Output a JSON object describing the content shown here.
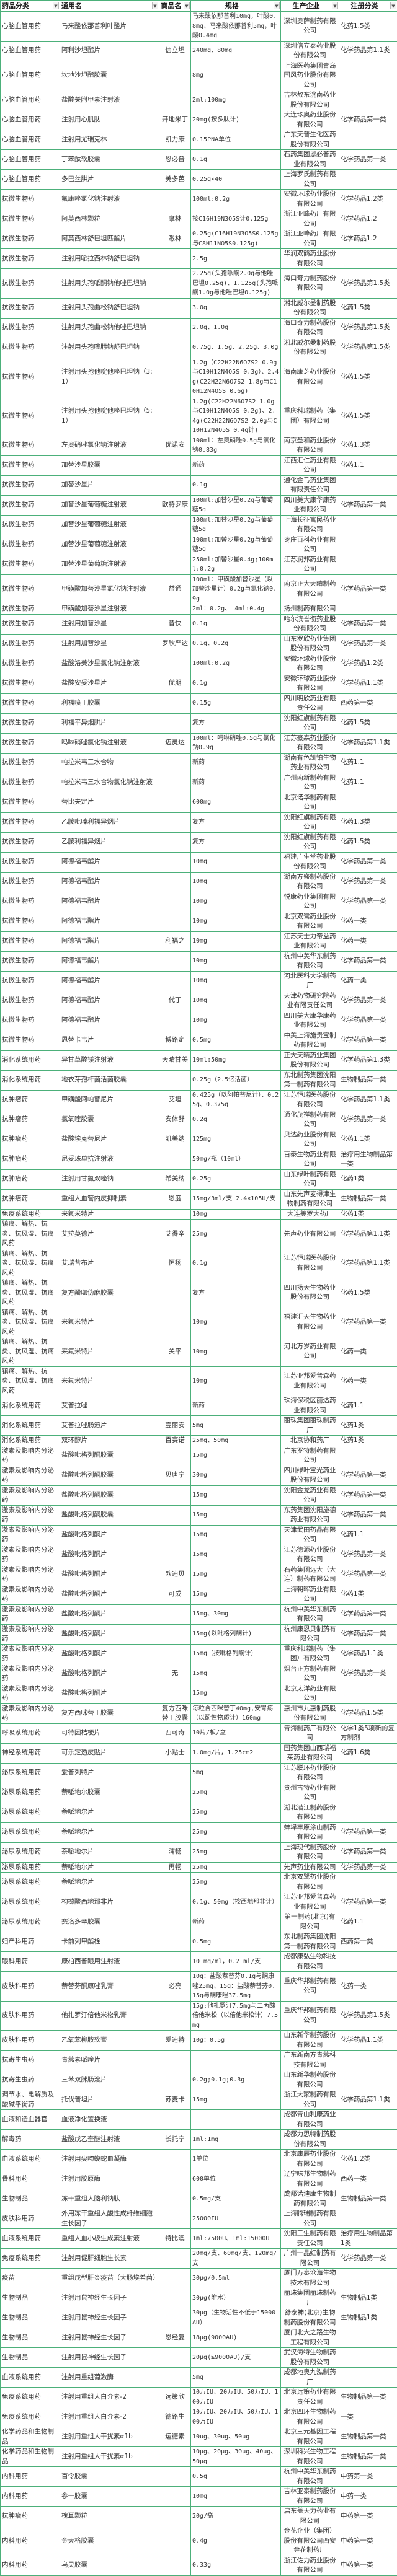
{
  "colors": {
    "grid": "#4cb07a"
  },
  "header": [
    {
      "label": "药品分类",
      "icon": "dropdown-arrow-icon"
    },
    {
      "label": "通用名",
      "icon": "dropdown-arrow-icon"
    },
    {
      "label": "商品名",
      "icon": "dropdown-arrow-icon"
    },
    {
      "label": "规格",
      "icon": "dropdown-arrow-icon"
    },
    {
      "label": "生产企业",
      "icon": "dropdown-arrow-icon"
    },
    {
      "label": "注册分类",
      "icon": "dropdown-arrow-icon"
    }
  ],
  "rows": [
    [
      "心脑血管用药",
      "马来酸依那普利叶酸片",
      "",
      "马来酸依那普利10mg，叶酸0.8mg、马来酸依那普利5mg，叶酸0.4mg",
      "深圳奥萨制药有限公司",
      "化药1.5类"
    ],
    [
      "心脑血管用药",
      "阿利沙坦酯片",
      "信立坦",
      "240mg、80mg",
      "深圳信立泰药业股份有限公司",
      "化学药品第1.1类"
    ],
    [
      "心脑血管用药",
      "坎地沙坦酯胶囊",
      "",
      "8mg",
      "上海医药集团青岛国风药业股份有限公司",
      ""
    ],
    [
      "心脑血管用药",
      "盐酸关附甲素注射液",
      "",
      "2ml:100mg",
      "吉林敖东洮南药业股份有限公司",
      ""
    ],
    [
      "心脑血管用药",
      "注射用心肌肽",
      "开地米丁",
      "20mg(按多肽计)",
      "大连珍奥药业股份有限公司",
      "化学药品第一类"
    ],
    [
      "心脑血管用药",
      "注射用尤瑞克林",
      "凯力康",
      "0.15PNA单位",
      "广东天普生化医药股份有限公司",
      ""
    ],
    [
      "心脑血管用药",
      "丁苯酞软胶囊",
      "恩必普",
      "0.1g",
      "石药集团恩必普药业有限公司",
      "化学药品第一类"
    ],
    [
      "心脑血管用药",
      "多巴丝肼片",
      "美多芭",
      "0.25g×40",
      "上海罗氏制药有限公司",
      ""
    ],
    [
      "抗微生物药",
      "氟康唑氯化钠注射液",
      "",
      "100ml:0.2g",
      "安徽环球药业股份有限公司",
      "化学药品1.2类"
    ],
    [
      "抗微生物药",
      "阿莫西林颗粒",
      "摩林",
      "按C16H19N3O5S计0.125g",
      "浙江亚峰药厂有限公司",
      "化学药品1.2"
    ],
    [
      "抗微生物药",
      "阿莫西林舒巴坦匹酯片",
      "悉林",
      "0.25g(C16H19N3O5S0.125g与C8H11NO5S0.125g)",
      "浙江亚峰药厂有限公司",
      "化学药品1.2"
    ],
    [
      "抗微生物药",
      "注射用哌拉西林钠舒巴坦钠",
      "",
      "2.5g",
      "华润双鹤药业股份有限公司",
      ""
    ],
    [
      "抗微生物药",
      "注射用头孢哌酮钠他唑巴坦钠",
      "",
      "2.25g(头孢哌酮2.0g与他唑巴坦0.25g)、1.125g(头孢哌酮1.0g与他唑巴坦0.125g)",
      "海口奇力制药股份有限公司",
      "化学药品第1.5类"
    ],
    [
      "抗微生物药",
      "注射用头孢曲松钠舒巴坦钠",
      "",
      "3.0g",
      "湘北威尔曼制药股份有限公司",
      "化药1.5类"
    ],
    [
      "抗微生物药",
      "注射用头孢曲松钠他唑巴坦钠",
      "",
      "2.0g、1.0g",
      "海口奇力制药股份有限公司",
      "化学药品第1.5类"
    ],
    [
      "抗微生物药",
      "注射用头孢噻肟钠舒巴坦钠",
      "",
      "0.75g、1.5g、2.25g、3.0g",
      "湘北威尔曼制药股份有限公司",
      "化学药品第1.5类"
    ],
    [
      "抗微生物药",
      "注射用头孢他啶他唑巴坦钠（3:1）",
      "",
      "1.2g（C22H22N6O7S2 0.9g与C10H12N4O5S 0.3g）、2.4g(C22H22N6O7S2 1.8g与C10H12N4O5S 0.6g)",
      "海南康芝药业股份有限公司",
      "化药1.5类"
    ],
    [
      "抗微生物药",
      "注射用头孢他啶他唑巴坦钠（5:1）",
      "",
      "1.2g(C22H22N6O7S2 1.0g与C10H12N4O5S 0.2g)、2.4g(C22H22N6O7S2 2.0g与C10H12N4O5S 0.4g计)",
      "重庆科瑞制药（集团）有限公司",
      "化药1.5类"
    ],
    [
      "抗微生物药",
      "左奥硝唑氯化钠注射液",
      "优诺安",
      "100ml：左奥硝唑0.5g与氯化钠0.83g",
      "南京圣和药业股份有限公司",
      "化药1.3类"
    ],
    [
      "抗微生物药",
      "加替沙星胶囊",
      "",
      "新药",
      "江西汇仁药业有限公司",
      "化药1.1"
    ],
    [
      "抗微生物药",
      "加替沙星片",
      "",
      "0.1g",
      "通化金马药业集团有限责任公司",
      ""
    ],
    [
      "抗微生物药",
      "加替沙星葡萄糖注射液",
      "欧特罗康",
      "100ml:加替沙星0.2g与葡萄糖5g",
      "四川美大康华康药业有限公司",
      "化学药品第一类"
    ],
    [
      "抗微生物药",
      "加替沙星葡萄糖注射液",
      "",
      "100ml:加替沙星0.2g与葡萄糖5g",
      "上海长征富民药业有限公司",
      ""
    ],
    [
      "抗微生物药",
      "加替沙星葡萄糖注射液",
      "",
      "100ml:加替沙星0.2g与葡萄糖5g",
      "枣庄百科药业有限公司",
      ""
    ],
    [
      "抗微生物药",
      "加替沙星葡萄糖注射液",
      "",
      "250ml:加替沙星0.4g;100ml:0.2g",
      "江苏润邦药业有限公司",
      ""
    ],
    [
      "抗微生物药",
      "甲磺酸加替沙星氯化钠注射液",
      "益通",
      "100ml：甲磺酸加替沙星（以加替沙星计）0.2g与氯化钠0.9g",
      "南京正大天晴制药有限公司",
      "化学药品第一类"
    ],
    [
      "抗微生物药",
      "甲磺酸加替沙星注射液",
      "",
      "2ml：0.2g、 4ml:0.4g",
      "扬州制药有限公司",
      ""
    ],
    [
      "抗微生物药",
      "注射用加替沙星",
      "昔快",
      "0.1g",
      "哈尔滨誉衡药业股份有限公司",
      "化学药品第一类"
    ],
    [
      "抗微生物药",
      "注射用加替沙星",
      "罗欣严达",
      "0.1g、0.2g",
      "山东罗欣药业集团股份有限公司",
      "化学药品第一类"
    ],
    [
      "抗微生物药",
      "盐酸洛美沙星氯化钠注射液",
      "",
      "100ml:0.2g",
      "安徽环球药业股份有限公司",
      "化学药品1.2类"
    ],
    [
      "抗微生物药",
      "盐酸安妥沙星片",
      "优朋",
      "0.1g",
      "安徽环球药业股份有限公司",
      "化学药品1.1类"
    ],
    [
      "抗微生物药",
      "利福喷丁胶囊",
      "",
      "0.15g",
      "四川明欣药业有限责任公司",
      "西药第一类"
    ],
    [
      "抗微生物药",
      "利福平异烟肼片",
      "",
      "复方",
      "沈阳红旗制药有限公司",
      "化药1.5类"
    ],
    [
      "抗微生物药",
      "吗啉硝唑氯化钠注射液",
      "迈灵达",
      "100ml：吗啉硝唑0.5g与氯化钠0.9g",
      "江苏豪森药业股份有限公司",
      "化学药品第1.1类"
    ],
    [
      "抗微生物药",
      "帕拉米韦三水合物",
      "",
      "新药",
      "湖南有色凯铂生物药业有限公司",
      "化药1.1"
    ],
    [
      "抗微生物药",
      "帕拉米韦三水合物氯化钠注射液",
      "",
      "新药",
      "广州南新制药有限公司",
      "化药1.1"
    ],
    [
      "抗微生物药",
      "替比夫定片",
      "",
      "600mg",
      "北京诺华制药有限公司",
      ""
    ],
    [
      "抗微生物药",
      "乙胺吡嗪利福异烟片",
      "",
      "复方",
      "沈阳红旗制药有限公司",
      "化药1.3类"
    ],
    [
      "抗微生物药",
      "乙胺利福异烟片",
      "",
      "复方",
      "沈阳红旗制药有限公司",
      "化药1.5类"
    ],
    [
      "抗微生物药",
      "阿德福韦酯片",
      "",
      "10mg",
      "福建广生堂药业股份有限公司",
      "化学药品第一类"
    ],
    [
      "抗微生物药",
      "阿德福韦酯片",
      "",
      "10mg",
      "湖南方盛制药股份有限公司",
      "化学药品第一类"
    ],
    [
      "抗微生物药",
      "阿德福韦酯片",
      "",
      "10mg",
      "悦康药业集团有限公司",
      "化学药品第一类"
    ],
    [
      "抗微生物药",
      "阿德福韦酯片",
      "",
      "10mg",
      "北京双鹭药业股份有限公司",
      "化药一类"
    ],
    [
      "抗微生物药",
      "阿德福韦酯片",
      "利福之",
      "10mg",
      "江苏天士力帝益药业有限公司",
      "化药一类"
    ],
    [
      "抗微生物药",
      "阿德福韦酯片",
      "",
      "10mg",
      "杭州中美华东制药有限公司",
      "化学药品第一类"
    ],
    [
      "抗微生物药",
      "阿德福韦酯片",
      "",
      "10mg",
      "河北医科大学制药厂",
      "化药一类"
    ],
    [
      "抗微生物药",
      "阿德福韦酯片",
      "代丁",
      "10mg",
      "天津药物研究院药业有限责任公司",
      "化学药品第一类"
    ],
    [
      "抗微生物药",
      "阿德福韦酯片",
      "",
      "10mg",
      "四川美大康华康药业有限公司",
      "化学药品第一类"
    ],
    [
      "抗微生物药",
      "恩替卡韦片",
      "博路定",
      "0.5mg",
      "中美上海施贵宝制药有限公司",
      "化学药品第一类"
    ],
    [
      "消化系统用药",
      "异甘草酸镁注射液",
      "天晴甘美",
      "10ml:50mg",
      "正大天晴药业集团股份有限公司",
      "化学药品第1.3类"
    ],
    [
      "消化系统用药",
      "地衣芽孢杆菌活菌胶囊",
      "",
      "0.25g（2.5亿活菌）",
      "东北制药集团沈阳第一制药有限公司",
      "生物制品第一类"
    ],
    [
      "抗肿瘤药",
      "甲磺酸阿帕替尼片",
      "艾坦",
      "0.425g（以阿帕替尼计）、0.25g、0.375g",
      "江苏恒瑞医药股份有限公司",
      "化学药品第1.1类"
    ],
    [
      "抗肿瘤药",
      "氯氧喹胶囊",
      "安体舒",
      "0.2g",
      "通化茂祥制药有限公司",
      "化学药品第一类"
    ],
    [
      "抗肿瘤药",
      "盐酸埃克替尼片",
      "凯美纳",
      "125mg",
      "贝达药业股份有限公司",
      "化药1.1类"
    ],
    [
      "抗肿瘤药",
      "尼妥珠单抗注射液",
      "",
      "50mg/瓶（10ml）",
      "百泰生物药业有限公司",
      "治疗用生物制品第一类"
    ],
    [
      "抗肿瘤药",
      "注射用甘氨双唑钠",
      "希美纳",
      "0.25g",
      "山东绿叶制药有限公司",
      "化药1类"
    ],
    [
      "抗肿瘤药",
      "重组人血管内皮抑制素",
      "恩度",
      "15mg/3ml/支 2.4×105U/支",
      "山东先声麦得津生物制药有限公司",
      "生物制品第一类"
    ],
    [
      "免疫系统用药",
      "来氟米特片",
      "",
      "10mg",
      "大连美罗大药厂",
      "化药1类"
    ],
    [
      "镇痛、解热、抗炎、抗风湿、抗痛风药",
      "艾拉莫德片",
      "艾得辛",
      "25mg",
      "先声药业有限公司",
      "化学药品第1.1类"
    ],
    [
      "镇痛、解热、抗炎、抗风湿、抗痛风药",
      "艾瑞昔布片",
      "恒扬",
      "0.1g",
      "江苏恒瑞医药股份有限公司",
      "化学药品第1.1类"
    ],
    [
      "镇痛、解热、抗炎、抗风湿、抗痛风药",
      "复方酚咖伪麻胶囊",
      "",
      "复方",
      "四川扬天生物药业股份有限公司",
      "化药1.5类"
    ],
    [
      "镇痛、解热、抗炎、抗风湿、抗痛风药",
      "来氟米特片",
      "",
      "10mg",
      "福建汇天生物药业有限公司",
      "化学药品第一类"
    ],
    [
      "镇痛、解热、抗炎、抗风湿、抗痛风药",
      "来氟米特片",
      "关平",
      "10mg",
      "河北万岁药业有限公司",
      "化药一类"
    ],
    [
      "镇痛、解热、抗炎、抗风湿、抗痛风药",
      "来氟米特片",
      "",
      "10mg",
      "江苏亚邦爱普森药业有限公司",
      "化药一类"
    ],
    [
      "消化系统用药",
      "艾普拉唑",
      "",
      "新药",
      "珠海保税区丽达药业有限公司",
      "化药1.1"
    ],
    [
      "消化系统用药",
      "艾普拉唑肠溶片",
      "壹丽安",
      "5mg",
      "丽珠集团丽珠制药厂",
      "化药1类"
    ],
    [
      "消化系统用药",
      "双环醇片",
      "百赛诺",
      "25mg、50mg",
      "北京协和药厂",
      "化药1类"
    ],
    [
      "激素及影响内分泌药",
      "盐酸吡格列酮胶囊",
      "",
      "15mg",
      "广东罗特制药有限公司",
      ""
    ],
    [
      "激素及影响内分泌药",
      "盐酸吡格列酮胶囊",
      "贝唐宁",
      "30mg",
      "四川绿叶宝光药业股份有限公司",
      "化学药品第一类"
    ],
    [
      "激素及影响内分泌药",
      "盐酸吡格列酮胶囊",
      "",
      "15mg",
      "沈阳金龙药业有限公司",
      "化学药品第一类"
    ],
    [
      "激素及影响内分泌药",
      "盐酸吡格列酮胶囊",
      "",
      "15mg",
      "东药集团沈阳施德药业有限公司",
      "化学药品第一类"
    ],
    [
      "激素及影响内分泌药",
      "盐酸吡格列酮片",
      "",
      "15mg",
      "天津武田药品有限公司",
      "化药1.1"
    ],
    [
      "激素及影响内分泌药",
      "盐酸吡格列酮片",
      "",
      "15mg",
      "江苏德源药业股份有限公司",
      "化学药品第一类"
    ],
    [
      "激素及影响内分泌药",
      "盐酸吡格列酮片",
      "欧迪贝",
      "15mg",
      "石药集团远大（大连）制药有限公司",
      "化学药品第一类"
    ],
    [
      "激素及影响内分泌药",
      "盐酸吡格列酮片",
      "可成",
      "15mg",
      "上海朝晖药业有限公司",
      "化药1类"
    ],
    [
      "激素及影响内分泌药",
      "盐酸吡格列酮片",
      "",
      "15mg、30mg",
      "杭州中美华东制药有限公司",
      "化学药品第一类"
    ],
    [
      "激素及影响内分泌药",
      "盐酸吡格列酮片",
      "",
      "15mg(以吡格列酮计)",
      "杭州康恩贝制药有限公司",
      "化学药品第一类"
    ],
    [
      "激素及影响内分泌药",
      "盐酸吡格列酮片",
      "",
      "15mg（按吡格列酮计）",
      "重庆科瑞制药（集团）有限公司",
      "化学药品1.1类"
    ],
    [
      "激素及影响内分泌药",
      "盐酸吡格列酮片",
      "无",
      "15mg",
      "烟台正方制药有限公司",
      "化学药品第一类"
    ],
    [
      "激素及影响内分泌药",
      "盐酸吡格列酮片",
      "",
      "15mg",
      "北京太洋药业有限公司",
      ""
    ],
    [
      "激素及影响内分泌药",
      "复方西咪替丁胶囊",
      "复方西咪替丁胶囊",
      "每粒含西咪替丁40mg,安胃疡（以酚性物质计）160mg",
      "惠州市九惠制药股份有限公司",
      "化学药品1.5类"
    ],
    [
      "呼吸系统用药",
      "可待因桔梗片",
      "西可奇",
      "10片/板/盒",
      "青海制药厂有限公司",
      "化学1类5项新的复方制剂"
    ],
    [
      "神经系统用药",
      "可乐定透皮贴片",
      "小贴士",
      "1.0mg/片，1.25cm2",
      "国药集团山西瑞福莱药业有限公司",
      "化药1.6类"
    ],
    [
      "泌尿系统用药",
      "爱普列特片",
      "",
      "5mg",
      "江苏联环药业股份有限公司",
      ""
    ],
    [
      "泌尿系统用药",
      "萘哌地尔胶囊",
      "",
      "25mg",
      "贵州古特药业有限公司",
      ""
    ],
    [
      "泌尿系统用药",
      "萘哌地尔片",
      "",
      "25mg",
      "湖北潜江制药股份有限公司",
      ""
    ],
    [
      "泌尿系统用药",
      "萘哌地尔片",
      "",
      "25mg",
      "蚌埠丰原涂山制药有限公司",
      "化学药品第一类"
    ],
    [
      "泌尿系统用药",
      "萘哌地尔片",
      "浦畅",
      "25mg",
      "上海现代制药股份有限公司",
      "化学药品第一类"
    ],
    [
      "泌尿系统用药",
      "萘哌地尔片",
      "再畅",
      "25mg",
      "先声药业有限公司",
      "化学药品第一类"
    ],
    [
      "泌尿系统用药",
      "萘哌地尔片",
      "",
      "25mg",
      "北京双鹭药业股份有限公司",
      ""
    ],
    [
      "泌尿系统用药",
      "枸橼酸西地那非片",
      "",
      "0.1g、50mg（按西地那非计）",
      "江苏亚邦爱普森药业有限公司",
      "化学药品第一类"
    ],
    [
      "泌尿系统用药",
      "赛洛多辛胶囊",
      "",
      "新药",
      "第一制药(北京)有限公司",
      "化药1.1"
    ],
    [
      "妇产科用药",
      "卡前列甲酯栓",
      "",
      "0.5mg",
      "东北制药集团沈阳第一制药有限公司",
      "西药第一类"
    ],
    [
      "眼科用药",
      "康柏西普眼用注射液",
      "",
      "10 mg/ml，0.2 ml/支",
      "成都康弘生物科技有限公司",
      ""
    ],
    [
      "皮肤科用药",
      "萘替芬酮康唑乳膏",
      "必亮",
      "10g：盐酸萘替芬0.1g与酮康唑25mg、15g：盐酸萘替芬0.15g与酮康唑37.5mg",
      "重庆华邦制药有限公司",
      "化药一类"
    ],
    [
      "皮肤科用药",
      "他扎罗汀倍他米松乳膏",
      "",
      "15g:他扎罗汀7.5mg与二丙酸倍他米松（以倍他米松计）7.5mg",
      "重庆华邦制药有限公司",
      "化学药品第1.5类"
    ],
    [
      "皮肤科用药",
      "乙氧苯柳胺软膏",
      "爱迪特",
      "10g：0.5g",
      "山东新华制药股份有限公司",
      "化学药品1.1类"
    ],
    [
      "抗寄生虫药",
      "青蒿素哌喹片",
      "",
      "",
      "广东新南方青蒿科技有限公司",
      ""
    ],
    [
      "抗寄生虫药",
      "三苯双脒肠溶片",
      "",
      "0.2g;0.1g;0.3g",
      "山东新华制药股份有限公司",
      ""
    ],
    [
      "调节水、电解质及酸碱平衡药",
      "托伐普坦片",
      "苏麦卡",
      "15mg",
      "浙江大冢制药有限公司",
      "化学药品第1.1类"
    ],
    [
      "血液和造血器官",
      "血液净化置换液",
      "",
      "",
      "成都青山利康药业有限公司",
      ""
    ],
    [
      "解毒药",
      "盐酸戊乙奎醚注射液",
      "长托宁",
      "1ml:1mg",
      "成都力思特制药股份有限公司",
      ""
    ],
    [
      "血液系统用药",
      "注射用尖吻蝮蛇血凝酶",
      "",
      "1单位",
      "北京康辰药业股份有限公司",
      "化药1.2类"
    ],
    [
      "骨科用药",
      "注射用胶原酶",
      "",
      "600单位",
      "辽宁味邦生物制药有限公司",
      "西药一类"
    ],
    [
      "生物制品",
      "冻干重组人脑利钠肽",
      "",
      "0.5mg/支",
      "成都诺迪康生物制药有限公司",
      "生物制品第一类"
    ],
    [
      "皮肤科用药",
      "外用冻干重组人酸性成纤维细胞生长因子",
      "",
      "25000IU",
      "上海腾瑞制药有限公司",
      ""
    ],
    [
      "血液系统用药",
      "重组人血小板生成素注射液",
      "特比澳",
      "1ml:7500U、1ml:15000U",
      "沈阳三生制药有限责任公司",
      "治疗用生物制品第1类"
    ],
    [
      "免疫系统用药",
      "注射用促肝细胞生长素",
      "",
      "20mg/支、60mg/支、120mg/支",
      "广州一品红制药有限公司",
      "化学药品第一类"
    ],
    [
      "疫苗",
      "重组戊型肝炎疫苗（大肠埃希菌）",
      "",
      "30μg/0.5ml",
      "厦门万泰沧海生物技术有限公司",
      ""
    ],
    [
      "生物制品",
      "注射用鼠神经生长因子",
      "",
      "30μg(附水）",
      "丽珠集团丽珠制药厂",
      "生物制品1类"
    ],
    [
      "生物制品",
      "注射用鼠神经生长因子",
      "",
      "30μg（生物活性不低于15000AU）",
      "舒泰神(北京)生物制药股份有限公司",
      "生物制品1类"
    ],
    [
      "生物制品",
      "注射用鼠神经生长因子",
      "恩经复",
      "18μg(9000AU)",
      "厦门北大之路生物工程有限公司",
      ""
    ],
    [
      "生物制品",
      "注射用鼠神经生长因子",
      "",
      "20μg(≥9000AU)/支",
      "武汉海特生物制药股份有限公司",
      ""
    ],
    [
      "血液系统用药",
      "注射用重组葡激酶",
      "",
      "5mg",
      "成都地奥九泓制药厂",
      ""
    ],
    [
      "免疫系统用药",
      "注射用重组人白介素-2",
      "远策欣",
      "10万IU、20万IU、50万IU、100万IU",
      "北京远策药业有限责任公司",
      "生物制品第一类"
    ],
    [
      "免疫系统用药",
      "注射用重组人白介素-2",
      "德路生",
      "10万IU、20万IU、50万IU、100万IU",
      "北京四环生物制药有限公司",
      "一类"
    ],
    [
      "化学药品和生物制品",
      "注射用重组人干扰素α1b",
      "运德素",
      "10ug、30ug、50ug",
      "北京三元基因工程有限公司",
      "生物制品第一类"
    ],
    [
      "化学药品和生物制品",
      "注射用重组人干扰素α1b",
      "",
      "10μg、20μg、30μg、40μg、50μg",
      "深圳科兴生物工程有限公司",
      "生物制品第一类"
    ],
    [
      "内科用药",
      "百令胶囊",
      "",
      "0.5g",
      "杭州中美华东制药有限公司",
      "中药第一类"
    ],
    [
      "内科用药",
      "参一胶囊",
      "",
      "10mg",
      "吉林亚泰制药股份有限公司",
      "中药一类"
    ],
    [
      "抗肿瘤药",
      "槐耳颗粒",
      "",
      "20g/袋",
      "启东盖天力药业有限公司",
      "中药第一类"
    ],
    [
      "内科用药",
      "金天格胶囊",
      "",
      "0.4g",
      "金花企业（集团）股份有限公司西安金花制药厂",
      "中药第一类"
    ],
    [
      "内科用药",
      "乌灵胶囊",
      "",
      "0.33g",
      "浙江佐力药业股份有限公司",
      "中药第一类"
    ]
  ]
}
